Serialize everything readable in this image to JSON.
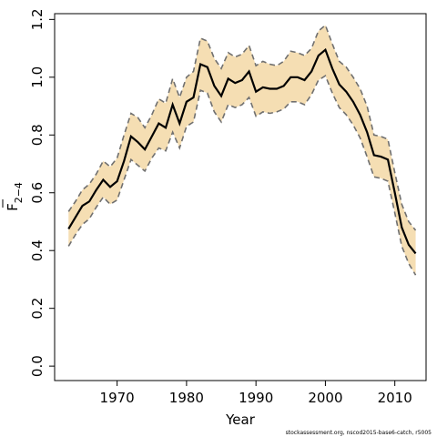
{
  "chart_data": {
    "type": "line",
    "xlabel": "Year",
    "ylabel_main": "F",
    "ylabel_sub": "2−4",
    "xlim": [
      1961,
      2014.5
    ],
    "ylim": [
      -0.05,
      1.22
    ],
    "x_ticks": [
      1970,
      1980,
      1990,
      2000,
      2010
    ],
    "y_ticks": [
      "0.0",
      "0.2",
      "0.4",
      "0.6",
      "0.8",
      "1.0",
      "1.2"
    ],
    "colors": {
      "band": "#f5deb3",
      "bounds": "#707070",
      "estimate": "#000000"
    },
    "x": [
      1963,
      1964,
      1965,
      1966,
      1967,
      1968,
      1969,
      1970,
      1971,
      1972,
      1973,
      1974,
      1975,
      1976,
      1977,
      1978,
      1979,
      1980,
      1981,
      1982,
      1983,
      1984,
      1985,
      1986,
      1987,
      1988,
      1989,
      1990,
      1991,
      1992,
      1993,
      1994,
      1995,
      1996,
      1997,
      1998,
      1999,
      2000,
      2001,
      2002,
      2003,
      2004,
      2005,
      2006,
      2007,
      2008,
      2009,
      2010,
      2011,
      2012,
      2013
    ],
    "series": [
      {
        "role": "estimate",
        "values": [
          0.475,
          0.515,
          0.555,
          0.57,
          0.61,
          0.645,
          0.62,
          0.64,
          0.71,
          0.795,
          0.775,
          0.75,
          0.795,
          0.84,
          0.825,
          0.905,
          0.84,
          0.915,
          0.93,
          1.045,
          1.035,
          0.97,
          0.935,
          0.995,
          0.98,
          0.99,
          1.02,
          0.95,
          0.965,
          0.96,
          0.96,
          0.97,
          1.0,
          1.0,
          0.99,
          1.02,
          1.075,
          1.095,
          1.03,
          0.975,
          0.95,
          0.915,
          0.87,
          0.81,
          0.73,
          0.725,
          0.715,
          0.6,
          0.48,
          0.42,
          0.39
        ]
      },
      {
        "role": "upper",
        "values": [
          0.535,
          0.57,
          0.61,
          0.63,
          0.665,
          0.71,
          0.69,
          0.72,
          0.8,
          0.875,
          0.86,
          0.825,
          0.87,
          0.925,
          0.91,
          0.995,
          0.93,
          1.0,
          1.02,
          1.135,
          1.125,
          1.065,
          1.03,
          1.085,
          1.07,
          1.08,
          1.11,
          1.04,
          1.055,
          1.045,
          1.04,
          1.055,
          1.09,
          1.085,
          1.075,
          1.1,
          1.16,
          1.18,
          1.115,
          1.055,
          1.035,
          1.0,
          0.96,
          0.9,
          0.8,
          0.795,
          0.785,
          0.67,
          0.56,
          0.5,
          0.47
        ]
      },
      {
        "role": "lower",
        "values": [
          0.415,
          0.455,
          0.49,
          0.51,
          0.55,
          0.585,
          0.56,
          0.575,
          0.645,
          0.715,
          0.695,
          0.675,
          0.72,
          0.755,
          0.745,
          0.81,
          0.755,
          0.83,
          0.845,
          0.955,
          0.945,
          0.88,
          0.845,
          0.905,
          0.895,
          0.905,
          0.93,
          0.865,
          0.88,
          0.875,
          0.88,
          0.89,
          0.915,
          0.915,
          0.905,
          0.94,
          0.99,
          1.005,
          0.945,
          0.895,
          0.87,
          0.835,
          0.79,
          0.725,
          0.655,
          0.65,
          0.64,
          0.53,
          0.415,
          0.355,
          0.315
        ]
      }
    ]
  },
  "footnote": "stockassessment.org, nscod2015-base6-catch, r5005"
}
